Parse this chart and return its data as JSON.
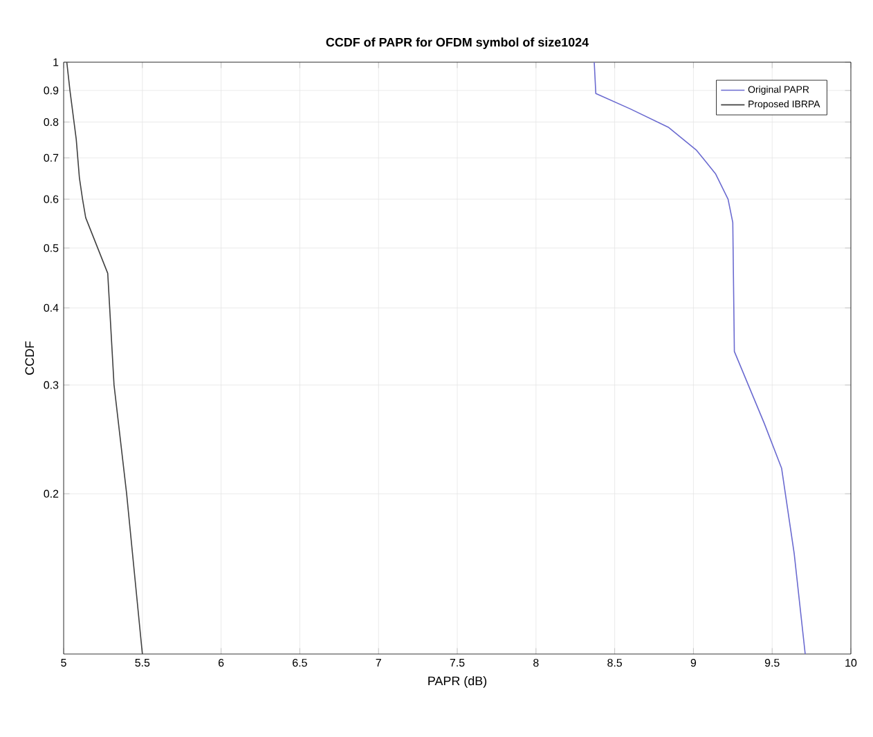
{
  "chart_data": {
    "type": "line",
    "title": "CCDF of PAPR for OFDM symbol of size1024",
    "xlabel": "PAPR (dB)",
    "ylabel": "CCDF",
    "log": "y",
    "grid": true,
    "legend": "top right",
    "xlim": [
      5,
      10
    ],
    "ylim": [
      0.11,
      1
    ],
    "xticks": [
      5,
      5.5,
      6,
      6.5,
      7,
      7.5,
      8,
      8.5,
      9,
      9.5,
      10
    ],
    "yticks": [
      0.2,
      0.3,
      0.4,
      0.5,
      0.6,
      0.7,
      0.8,
      0.9,
      1
    ],
    "series": [
      {
        "name": "Original PAPR",
        "color": "#6a6ad0",
        "x": [
          8.37,
          8.38,
          8.6,
          8.84,
          9.02,
          9.14,
          9.22,
          9.25,
          9.26,
          9.45,
          9.56,
          9.64,
          9.71
        ],
        "values": [
          1,
          0.89,
          0.84,
          0.785,
          0.72,
          0.66,
          0.6,
          0.55,
          0.34,
          0.26,
          0.22,
          0.16,
          0.11
        ]
      },
      {
        "name": "Proposed IBRPA",
        "color": "#404040",
        "x": [
          5.02,
          5.04,
          5.08,
          5.1,
          5.12,
          5.14,
          5.28,
          5.32,
          5.4,
          5.5
        ],
        "values": [
          1,
          0.9,
          0.75,
          0.65,
          0.6,
          0.56,
          0.455,
          0.3,
          0.2,
          0.11
        ]
      }
    ]
  }
}
